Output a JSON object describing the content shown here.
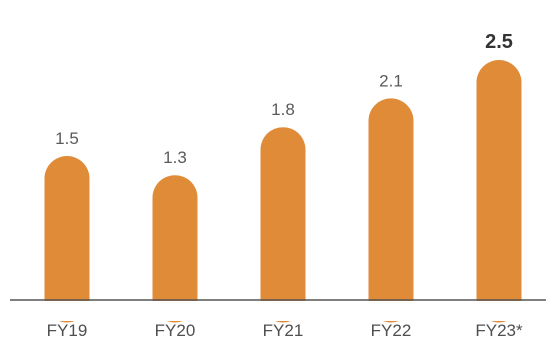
{
  "chart_data": {
    "type": "bar",
    "categories": [
      "FY19",
      "FY20",
      "FY21",
      "FY22",
      "FY23*"
    ],
    "values": [
      1.5,
      1.3,
      1.8,
      2.1,
      2.5
    ],
    "value_labels": [
      "1.5",
      "1.3",
      "1.8",
      "2.1",
      "2.5"
    ],
    "highlighted_index": 4,
    "title": "",
    "xlabel": "",
    "ylabel": "",
    "ylim": [
      0,
      2.5
    ],
    "grid": false,
    "legend": "none",
    "bar_color": "#e08b38",
    "axis_color": "#555555"
  }
}
